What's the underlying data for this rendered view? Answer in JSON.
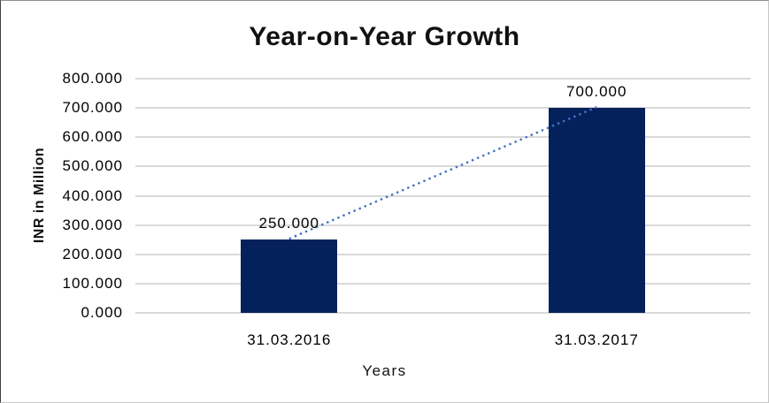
{
  "chart_data": {
    "type": "bar",
    "title": "Year-on-Year Growth",
    "xlabel": "Years",
    "ylabel": "INR in Million",
    "categories": [
      "31.03.2016",
      "31.03.2017"
    ],
    "values": [
      250,
      700
    ],
    "value_labels": [
      "250.000",
      "700.000"
    ],
    "ylim": [
      0,
      800
    ],
    "ytick_step": 100,
    "ytick_labels": [
      "0.000",
      "100.000",
      "200.000",
      "300.000",
      "400.000",
      "500.000",
      "600.000",
      "700.000",
      "800.000"
    ],
    "grid": true,
    "legend": "none",
    "colors": {
      "bar": "#05215C",
      "gridline": "#D9D9D9",
      "trendline": "#4472C4",
      "text": "#000000"
    },
    "trendline": {
      "style": "dotted",
      "color": "#4472C4",
      "connects": [
        "top of 31.03.2016 bar (250)",
        "top of 31.03.2017 bar (700)"
      ]
    }
  }
}
